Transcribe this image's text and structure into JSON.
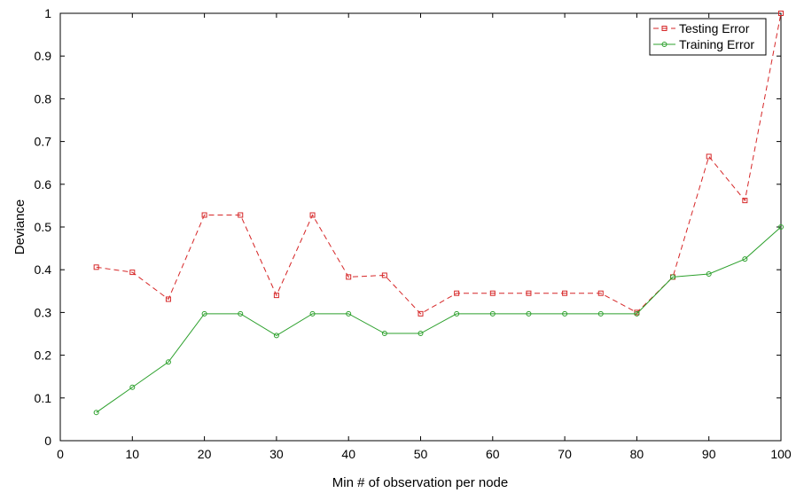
{
  "chart_data": {
    "type": "line",
    "xlabel": "Min # of observation per node",
    "ylabel": "Deviance",
    "xlim": [
      0,
      100
    ],
    "ylim": [
      0,
      1
    ],
    "x_ticks": [
      0,
      10,
      20,
      30,
      40,
      50,
      60,
      70,
      80,
      90,
      100
    ],
    "y_ticks": [
      0,
      0.1,
      0.2,
      0.3,
      0.4,
      0.5,
      0.6,
      0.7,
      0.8,
      0.9,
      1
    ],
    "grid": false,
    "legend_position": "top-right",
    "x": [
      5,
      10,
      15,
      20,
      25,
      30,
      35,
      40,
      45,
      50,
      55,
      60,
      65,
      70,
      75,
      80,
      85,
      90,
      95,
      100
    ],
    "series": [
      {
        "name": "Testing Error",
        "color": "#d62728",
        "line_style": "dashed",
        "marker": "square",
        "values": [
          0.406,
          0.394,
          0.331,
          0.528,
          0.528,
          0.34,
          0.528,
          0.383,
          0.387,
          0.297,
          0.345,
          0.345,
          0.345,
          0.345,
          0.345,
          0.3,
          0.383,
          0.665,
          0.562,
          1.0
        ]
      },
      {
        "name": "Training Error",
        "color": "#2ca02c",
        "line_style": "solid",
        "marker": "circle",
        "values": [
          0.066,
          0.125,
          0.184,
          0.297,
          0.297,
          0.246,
          0.297,
          0.297,
          0.251,
          0.251,
          0.297,
          0.297,
          0.297,
          0.297,
          0.297,
          0.297,
          0.383,
          0.39,
          0.425,
          0.5
        ]
      }
    ]
  }
}
